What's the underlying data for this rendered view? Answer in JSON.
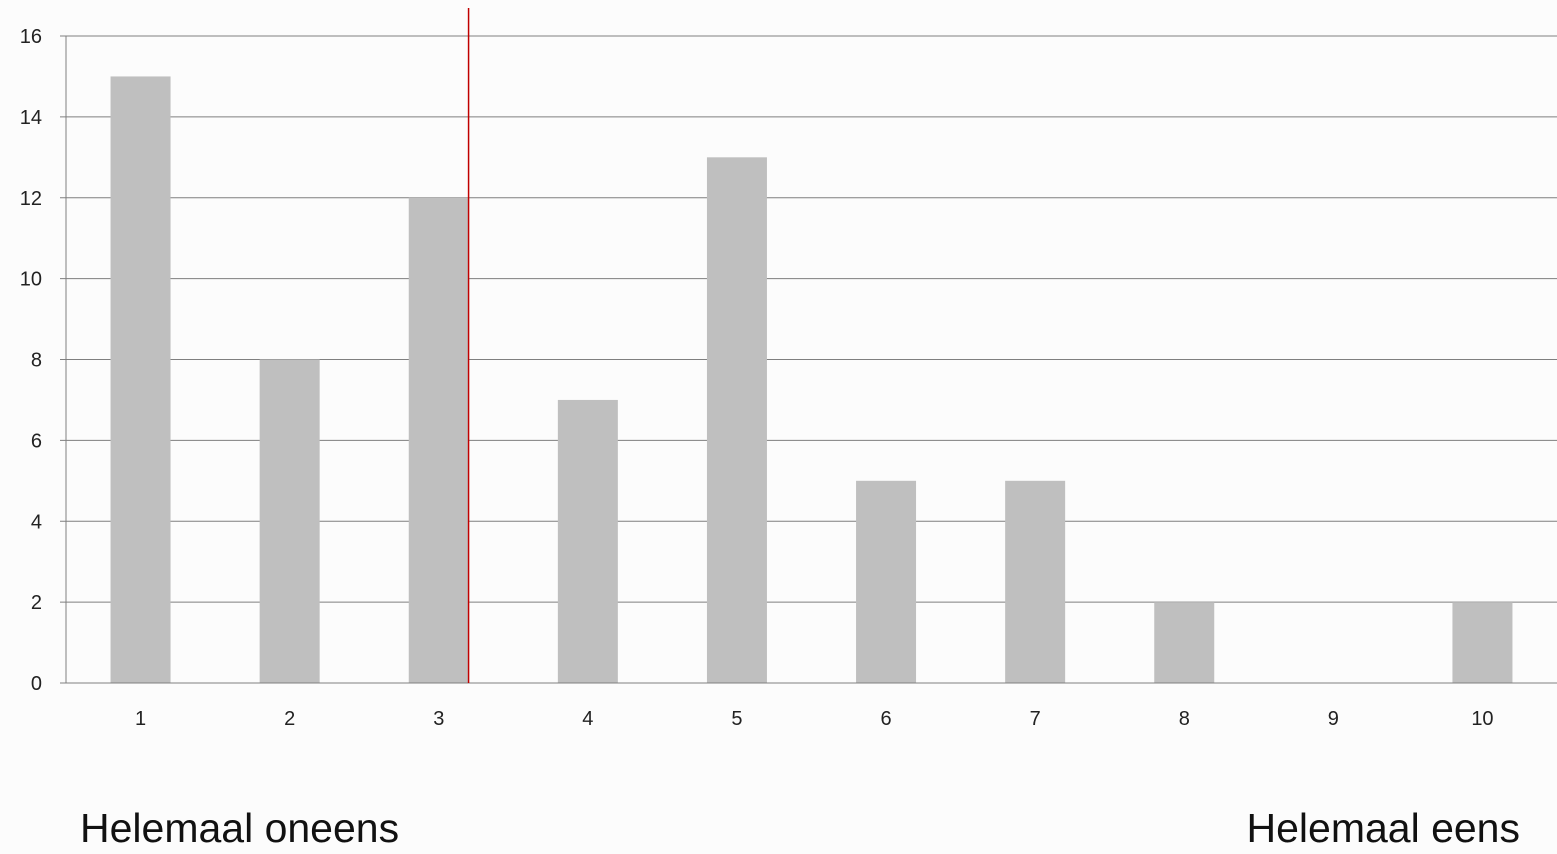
{
  "chart_data": {
    "type": "bar",
    "categories": [
      "1",
      "2",
      "3",
      "4",
      "5",
      "6",
      "7",
      "8",
      "9",
      "10"
    ],
    "values": [
      15,
      8,
      12,
      7,
      13,
      5,
      5,
      2,
      0,
      2
    ],
    "ylim": [
      0,
      16
    ],
    "yticks": [
      0,
      2,
      4,
      6,
      8,
      10,
      12,
      14,
      16
    ],
    "grid": true,
    "legend": "none",
    "bar_color": "#bfbfbf",
    "gridline_color": "#7f7f7f",
    "reference_line": {
      "x": 3.2,
      "color": "#c00000"
    },
    "title": "",
    "xlabel": "",
    "ylabel": ""
  },
  "scale_labels": {
    "left": "Helemaal oneens",
    "right": "Helemaal eens"
  }
}
